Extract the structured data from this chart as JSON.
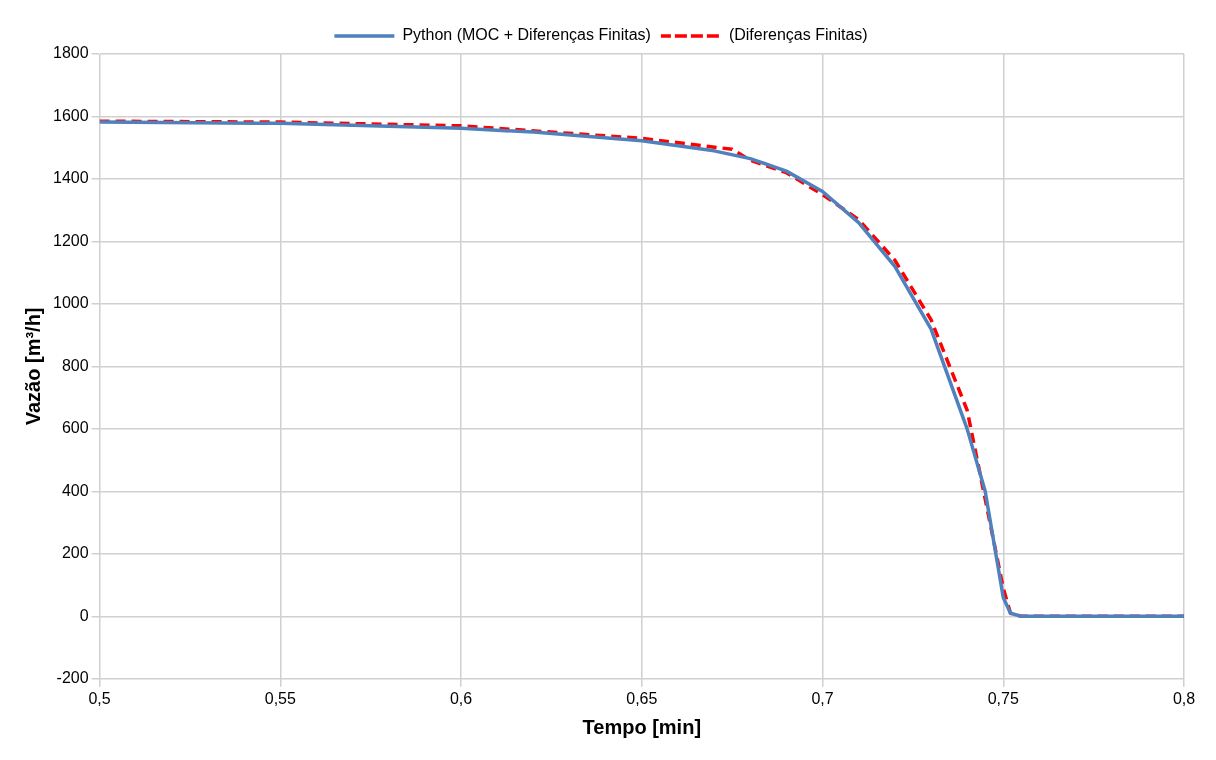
{
  "chart_data": {
    "type": "line",
    "xlabel": "Tempo [min]",
    "ylabel": "Vazão [m³/h]",
    "legend": "top",
    "grid": true,
    "xlim": [
      0.5,
      0.8
    ],
    "xticks": [
      {
        "value": 0.5,
        "label": "0,5"
      },
      {
        "value": 0.55,
        "label": "0,55"
      },
      {
        "value": 0.6,
        "label": "0,6"
      },
      {
        "value": 0.65,
        "label": "0,65"
      },
      {
        "value": 0.7,
        "label": "0,7"
      },
      {
        "value": 0.75,
        "label": "0,75"
      },
      {
        "value": 0.8,
        "label": "0,8"
      }
    ],
    "ylim": [
      -200,
      1800
    ],
    "yticks": [
      -200,
      0,
      200,
      400,
      600,
      800,
      1000,
      1200,
      1400,
      1600,
      1800
    ],
    "series": [
      {
        "name": "Python (MOC + Diferenças Finitas)",
        "color": "#4f81bd",
        "line_style": "solid",
        "x": [
          0.5,
          0.55,
          0.6,
          0.62,
          0.65,
          0.67,
          0.68,
          0.69,
          0.7,
          0.71,
          0.72,
          0.73,
          0.74,
          0.745,
          0.75,
          0.752,
          0.755,
          0.8
        ],
        "values": [
          1582,
          1578,
          1562,
          1550,
          1522,
          1490,
          1465,
          1425,
          1360,
          1260,
          1120,
          920,
          600,
          400,
          60,
          10,
          0,
          0
        ]
      },
      {
        "name": "(Diferenças Finitas)",
        "color": "#ff0000",
        "line_style": "dashed",
        "x": [
          0.5,
          0.55,
          0.6,
          0.65,
          0.675,
          0.68,
          0.69,
          0.7,
          0.71,
          0.72,
          0.73,
          0.74,
          0.75,
          0.752,
          0.755,
          0.8
        ],
        "values": [
          1585,
          1582,
          1570,
          1530,
          1495,
          1460,
          1420,
          1350,
          1270,
          1140,
          950,
          660,
          90,
          10,
          0,
          0
        ]
      }
    ]
  }
}
